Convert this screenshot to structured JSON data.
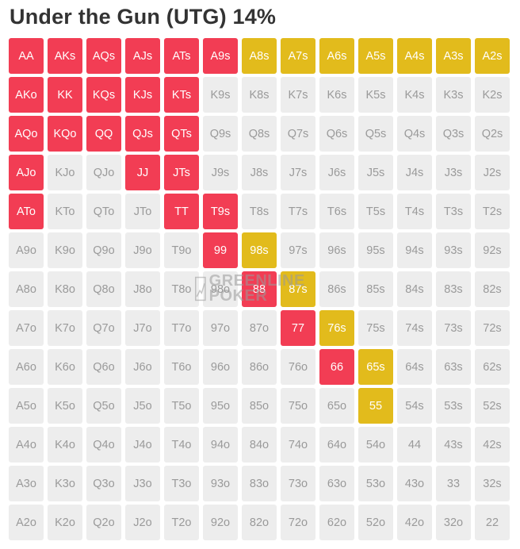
{
  "title": "Under the Gun (UTG) 14%",
  "colors": {
    "raise": "#f23d54",
    "limp": "#e2bb1c",
    "fold": "#ededed"
  },
  "watermark": "GREENLINE POKER",
  "chart_data": {
    "type": "table",
    "title": "Under the Gun (UTG) 14%",
    "legend": {
      "raise": "red",
      "limp": "yellow",
      "fold": "gray"
    },
    "rows": [
      [
        [
          "AA",
          "raise"
        ],
        [
          "AKs",
          "raise"
        ],
        [
          "AQs",
          "raise"
        ],
        [
          "AJs",
          "raise"
        ],
        [
          "ATs",
          "raise"
        ],
        [
          "A9s",
          "raise"
        ],
        [
          "A8s",
          "limp"
        ],
        [
          "A7s",
          "limp"
        ],
        [
          "A6s",
          "limp"
        ],
        [
          "A5s",
          "limp"
        ],
        [
          "A4s",
          "limp"
        ],
        [
          "A3s",
          "limp"
        ],
        [
          "A2s",
          "limp"
        ]
      ],
      [
        [
          "AKo",
          "raise"
        ],
        [
          "KK",
          "raise"
        ],
        [
          "KQs",
          "raise"
        ],
        [
          "KJs",
          "raise"
        ],
        [
          "KTs",
          "raise"
        ],
        [
          "K9s",
          "fold"
        ],
        [
          "K8s",
          "fold"
        ],
        [
          "K7s",
          "fold"
        ],
        [
          "K6s",
          "fold"
        ],
        [
          "K5s",
          "fold"
        ],
        [
          "K4s",
          "fold"
        ],
        [
          "K3s",
          "fold"
        ],
        [
          "K2s",
          "fold"
        ]
      ],
      [
        [
          "AQo",
          "raise"
        ],
        [
          "KQo",
          "raise"
        ],
        [
          "QQ",
          "raise"
        ],
        [
          "QJs",
          "raise"
        ],
        [
          "QTs",
          "raise"
        ],
        [
          "Q9s",
          "fold"
        ],
        [
          "Q8s",
          "fold"
        ],
        [
          "Q7s",
          "fold"
        ],
        [
          "Q6s",
          "fold"
        ],
        [
          "Q5s",
          "fold"
        ],
        [
          "Q4s",
          "fold"
        ],
        [
          "Q3s",
          "fold"
        ],
        [
          "Q2s",
          "fold"
        ]
      ],
      [
        [
          "AJo",
          "raise"
        ],
        [
          "KJo",
          "fold"
        ],
        [
          "QJo",
          "fold"
        ],
        [
          "JJ",
          "raise"
        ],
        [
          "JTs",
          "raise"
        ],
        [
          "J9s",
          "fold"
        ],
        [
          "J8s",
          "fold"
        ],
        [
          "J7s",
          "fold"
        ],
        [
          "J6s",
          "fold"
        ],
        [
          "J5s",
          "fold"
        ],
        [
          "J4s",
          "fold"
        ],
        [
          "J3s",
          "fold"
        ],
        [
          "J2s",
          "fold"
        ]
      ],
      [
        [
          "ATo",
          "raise"
        ],
        [
          "KTo",
          "fold"
        ],
        [
          "QTo",
          "fold"
        ],
        [
          "JTo",
          "fold"
        ],
        [
          "TT",
          "raise"
        ],
        [
          "T9s",
          "raise"
        ],
        [
          "T8s",
          "fold"
        ],
        [
          "T7s",
          "fold"
        ],
        [
          "T6s",
          "fold"
        ],
        [
          "T5s",
          "fold"
        ],
        [
          "T4s",
          "fold"
        ],
        [
          "T3s",
          "fold"
        ],
        [
          "T2s",
          "fold"
        ]
      ],
      [
        [
          "A9o",
          "fold"
        ],
        [
          "K9o",
          "fold"
        ],
        [
          "Q9o",
          "fold"
        ],
        [
          "J9o",
          "fold"
        ],
        [
          "T9o",
          "fold"
        ],
        [
          "99",
          "raise"
        ],
        [
          "98s",
          "limp"
        ],
        [
          "97s",
          "fold"
        ],
        [
          "96s",
          "fold"
        ],
        [
          "95s",
          "fold"
        ],
        [
          "94s",
          "fold"
        ],
        [
          "93s",
          "fold"
        ],
        [
          "92s",
          "fold"
        ]
      ],
      [
        [
          "A8o",
          "fold"
        ],
        [
          "K8o",
          "fold"
        ],
        [
          "Q8o",
          "fold"
        ],
        [
          "J8o",
          "fold"
        ],
        [
          "T8o",
          "fold"
        ],
        [
          "98o",
          "fold"
        ],
        [
          "88",
          "raise"
        ],
        [
          "87s",
          "limp"
        ],
        [
          "86s",
          "fold"
        ],
        [
          "85s",
          "fold"
        ],
        [
          "84s",
          "fold"
        ],
        [
          "83s",
          "fold"
        ],
        [
          "82s",
          "fold"
        ]
      ],
      [
        [
          "A7o",
          "fold"
        ],
        [
          "K7o",
          "fold"
        ],
        [
          "Q7o",
          "fold"
        ],
        [
          "J7o",
          "fold"
        ],
        [
          "T7o",
          "fold"
        ],
        [
          "97o",
          "fold"
        ],
        [
          "87o",
          "fold"
        ],
        [
          "77",
          "raise"
        ],
        [
          "76s",
          "limp"
        ],
        [
          "75s",
          "fold"
        ],
        [
          "74s",
          "fold"
        ],
        [
          "73s",
          "fold"
        ],
        [
          "72s",
          "fold"
        ]
      ],
      [
        [
          "A6o",
          "fold"
        ],
        [
          "K6o",
          "fold"
        ],
        [
          "Q6o",
          "fold"
        ],
        [
          "J6o",
          "fold"
        ],
        [
          "T6o",
          "fold"
        ],
        [
          "96o",
          "fold"
        ],
        [
          "86o",
          "fold"
        ],
        [
          "76o",
          "fold"
        ],
        [
          "66",
          "raise"
        ],
        [
          "65s",
          "limp"
        ],
        [
          "64s",
          "fold"
        ],
        [
          "63s",
          "fold"
        ],
        [
          "62s",
          "fold"
        ]
      ],
      [
        [
          "A5o",
          "fold"
        ],
        [
          "K5o",
          "fold"
        ],
        [
          "Q5o",
          "fold"
        ],
        [
          "J5o",
          "fold"
        ],
        [
          "T5o",
          "fold"
        ],
        [
          "95o",
          "fold"
        ],
        [
          "85o",
          "fold"
        ],
        [
          "75o",
          "fold"
        ],
        [
          "65o",
          "fold"
        ],
        [
          "55",
          "limp"
        ],
        [
          "54s",
          "fold"
        ],
        [
          "53s",
          "fold"
        ],
        [
          "52s",
          "fold"
        ]
      ],
      [
        [
          "A4o",
          "fold"
        ],
        [
          "K4o",
          "fold"
        ],
        [
          "Q4o",
          "fold"
        ],
        [
          "J4o",
          "fold"
        ],
        [
          "T4o",
          "fold"
        ],
        [
          "94o",
          "fold"
        ],
        [
          "84o",
          "fold"
        ],
        [
          "74o",
          "fold"
        ],
        [
          "64o",
          "fold"
        ],
        [
          "54o",
          "fold"
        ],
        [
          "44",
          "fold"
        ],
        [
          "43s",
          "fold"
        ],
        [
          "42s",
          "fold"
        ]
      ],
      [
        [
          "A3o",
          "fold"
        ],
        [
          "K3o",
          "fold"
        ],
        [
          "Q3o",
          "fold"
        ],
        [
          "J3o",
          "fold"
        ],
        [
          "T3o",
          "fold"
        ],
        [
          "93o",
          "fold"
        ],
        [
          "83o",
          "fold"
        ],
        [
          "73o",
          "fold"
        ],
        [
          "63o",
          "fold"
        ],
        [
          "53o",
          "fold"
        ],
        [
          "43o",
          "fold"
        ],
        [
          "33",
          "fold"
        ],
        [
          "32s",
          "fold"
        ]
      ],
      [
        [
          "A2o",
          "fold"
        ],
        [
          "K2o",
          "fold"
        ],
        [
          "Q2o",
          "fold"
        ],
        [
          "J2o",
          "fold"
        ],
        [
          "T2o",
          "fold"
        ],
        [
          "92o",
          "fold"
        ],
        [
          "82o",
          "fold"
        ],
        [
          "72o",
          "fold"
        ],
        [
          "62o",
          "fold"
        ],
        [
          "52o",
          "fold"
        ],
        [
          "42o",
          "fold"
        ],
        [
          "32o",
          "fold"
        ],
        [
          "22",
          "fold"
        ]
      ]
    ]
  }
}
